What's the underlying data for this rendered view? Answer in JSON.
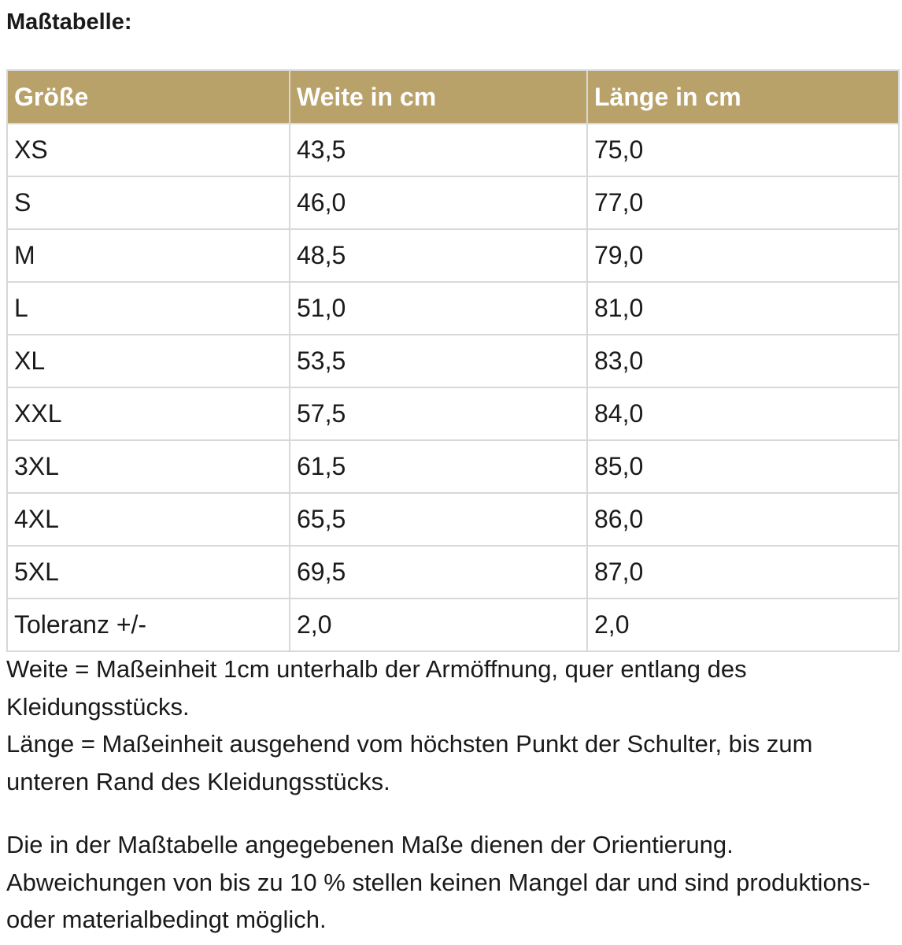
{
  "title": "Maßtabelle:",
  "table": {
    "headers": [
      "Größe",
      "Weite in cm",
      "Länge in cm"
    ],
    "rows": [
      [
        "XS",
        "43,5",
        "75,0"
      ],
      [
        "S",
        "46,0",
        "77,0"
      ],
      [
        "M",
        "48,5",
        "79,0"
      ],
      [
        "L",
        "51,0",
        "81,0"
      ],
      [
        "XL",
        "53,5",
        "83,0"
      ],
      [
        "XXL",
        "57,5",
        "84,0"
      ],
      [
        "3XL",
        "61,5",
        "85,0"
      ],
      [
        "4XL",
        "65,5",
        "86,0"
      ],
      [
        "5XL",
        "69,5",
        "87,0"
      ],
      [
        "Toleranz +/-",
        "2,0",
        "2,0"
      ]
    ]
  },
  "notes": {
    "weite": "Weite = Maßeinheit 1cm unterhalb der Armöffnung, quer entlang des Kleidungsstücks.",
    "laenge": "Länge = Maßeinheit ausgehend vom höchsten Punkt der Schulter, bis zum unteren Rand des Kleidungsstücks.",
    "disclaimer": "Die in der Maßtabelle angegebenen Maße dienen der Orientierung. Abweichungen von bis zu 10 % stellen keinen Mangel dar und sind produktions- oder materialbedingt möglich."
  },
  "colors": {
    "header_background": "#b9a26a",
    "header_text": "#ffffff",
    "grid_lines": "#d8d8d8"
  }
}
